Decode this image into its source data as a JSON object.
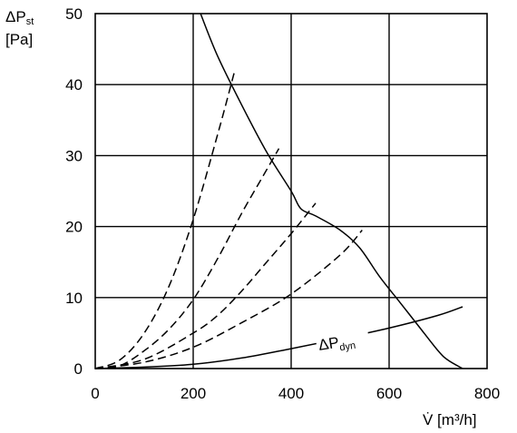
{
  "chart_data": {
    "type": "line",
    "xlabel": {
      "main": "V̇ [m³/h]"
    },
    "ylabel": {
      "symbol": "ΔP",
      "sub": "st",
      "unit": "[Pa]"
    },
    "xlim": [
      0,
      800
    ],
    "ylim": [
      0,
      50
    ],
    "x_ticks": [
      "0",
      "200",
      "400",
      "600",
      "800"
    ],
    "y_ticks": [
      "0",
      "10",
      "20",
      "30",
      "40",
      "50"
    ],
    "grid": true,
    "series": [
      {
        "style": "solid",
        "x": [
          215,
          250,
          300,
          350,
          400,
          420,
          450,
          500,
          540,
          580,
          620,
          660,
          700,
          720,
          750
        ],
        "y": [
          50,
          44,
          37,
          30.5,
          25,
          22.5,
          21.5,
          19.5,
          17,
          13,
          9.5,
          6,
          2.5,
          1.2,
          0
        ]
      },
      {
        "style": "dashed",
        "x": [
          0,
          50,
          100,
          150,
          200,
          250,
          285
        ],
        "y": [
          0,
          1.2,
          5,
          11.5,
          21,
          33,
          42
        ]
      },
      {
        "style": "dashed",
        "x": [
          0,
          50,
          100,
          150,
          200,
          250,
          300,
          350,
          375
        ],
        "y": [
          0,
          0.4,
          2.5,
          5.5,
          9.7,
          15.5,
          22,
          28,
          31
        ]
      },
      {
        "style": "dashed",
        "x": [
          0,
          100,
          200,
          250,
          300,
          350,
          400,
          450
        ],
        "y": [
          0,
          1.3,
          5,
          7.5,
          11,
          15,
          19,
          23.3
        ]
      },
      {
        "style": "dashed",
        "x": [
          0,
          100,
          200,
          300,
          400,
          500,
          545
        ],
        "y": [
          0,
          0.9,
          3,
          6.5,
          10.5,
          16,
          19.5
        ]
      },
      {
        "name": {
          "symbol": "ΔP",
          "sub": "dyn"
        },
        "style": "solid",
        "x": [
          0,
          100,
          200,
          300,
          400,
          500,
          600,
          700,
          750
        ],
        "y": [
          0,
          0.2,
          0.6,
          1.5,
          2.8,
          4.2,
          5.7,
          7.5,
          8.7
        ]
      }
    ]
  }
}
